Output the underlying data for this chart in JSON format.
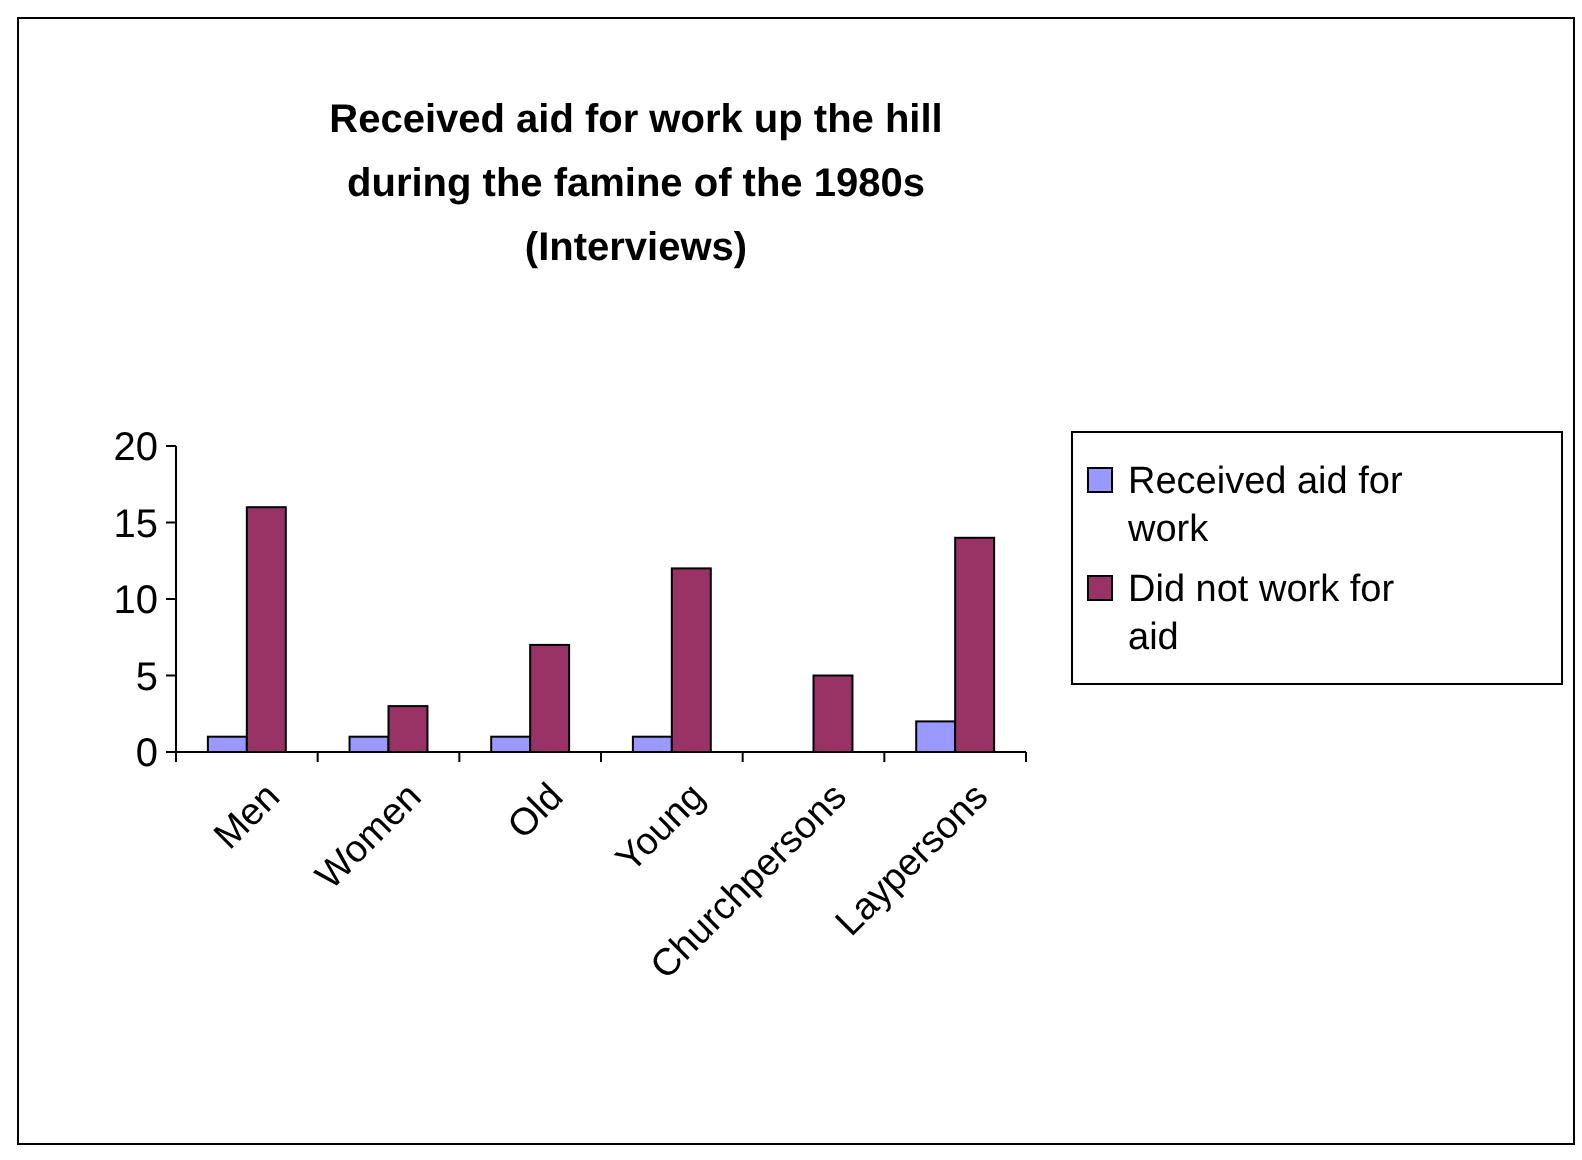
{
  "chart_data": {
    "type": "bar",
    "title": "Received aid for work up the hill during the famine of the 1980s (Interviews)",
    "categories": [
      "Men",
      "Women",
      "Old",
      "Young",
      "Churchpersons",
      "Laypersons"
    ],
    "series": [
      {
        "name": "Received aid for work",
        "color": "#9999ff",
        "values": [
          1,
          1,
          1,
          1,
          0,
          2
        ]
      },
      {
        "name": "Did not work for aid",
        "color": "#993366",
        "values": [
          16,
          3,
          7,
          12,
          5,
          14
        ]
      }
    ],
    "ylim": [
      0,
      20
    ],
    "yticks": [
      0,
      5,
      10,
      15,
      20
    ],
    "grid": false,
    "legend": "right"
  }
}
